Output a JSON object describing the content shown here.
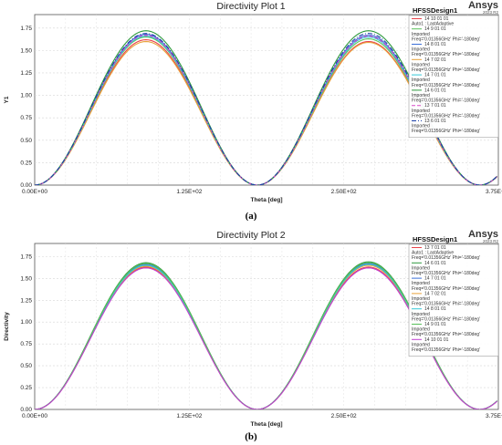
{
  "chart_data": [
    {
      "type": "line",
      "caption": "(a)",
      "title": "Directivity Plot 1",
      "brand": "Ansys",
      "brand_sub": "2023 R2",
      "design": "HFSSDesign1",
      "xlabel": "Theta [deg]",
      "ylabel": "Y1",
      "xlim": [
        0,
        375
      ],
      "ylim": [
        0,
        1.9
      ],
      "xticks": [
        "0.00E+00",
        "1.25E+02",
        "2.50E+02",
        "3.75E+02"
      ],
      "xtick_values": [
        0,
        125,
        250,
        375
      ],
      "yticks": [
        "0.00",
        "0.25",
        "0.50",
        "0.75",
        "1.00",
        "1.25",
        "1.50",
        "1.75"
      ],
      "ytick_values": [
        0,
        0.25,
        0.5,
        0.75,
        1.0,
        1.25,
        1.5,
        1.75
      ],
      "grid": true,
      "legend": "top-right",
      "shape": "sin_squared_period_180",
      "series": [
        {
          "name": "14 10 01 01",
          "sub": [
            "Auto1 : LastAdaptive"
          ],
          "color": "#e8434a",
          "dash": "",
          "peak1": 1.62,
          "peak2": 1.6
        },
        {
          "name": "14 9 01 01",
          "sub": [
            "Imported",
            "Freq='0.01356GHz' Phi='-180deg'"
          ],
          "color": "#58c05a",
          "dash": "",
          "peak1": 1.65,
          "peak2": 1.63
        },
        {
          "name": "14 8 01 01",
          "sub": [
            "Imported",
            "Freq='0.01356GHz' Phi='-180deg'"
          ],
          "color": "#3b6fd8",
          "dash": "",
          "peak1": 1.68,
          "peak2": 1.67
        },
        {
          "name": "14 7 02 01",
          "sub": [
            "Imported",
            "Freq='0.01356GHz' Phi='-180deg'"
          ],
          "color": "#e8a23a",
          "dash": "",
          "peak1": 1.6,
          "peak2": 1.59
        },
        {
          "name": "14 7 01 01",
          "sub": [
            "Imported",
            "Freq='0.01356GHz' Phi='-180deg'"
          ],
          "color": "#33c8d8",
          "dash": "",
          "peak1": 1.66,
          "peak2": 1.65
        },
        {
          "name": "14 6 01 01",
          "sub": [
            "Imported",
            "Freq='0.01356GHz' Phi='-180deg'"
          ],
          "color": "#2e9a3e",
          "dash": "",
          "peak1": 1.72,
          "peak2": 1.72
        },
        {
          "name": "13 7 01 01",
          "sub": [
            "Imported",
            "Freq='0.01356GHz' Phi='-180deg'"
          ],
          "color": "#d848c8",
          "dash": "4,2",
          "peak1": 1.67,
          "peak2": 1.66
        },
        {
          "name": "13 6 01 01",
          "sub": [
            "Imported",
            "Freq='0.01356GHz' Phi='-180deg'"
          ],
          "color": "#1a3fa8",
          "dash": "5,2,1,2",
          "peak1": 1.69,
          "peak2": 1.69
        }
      ]
    },
    {
      "type": "line",
      "caption": "(b)",
      "title": "Directivity Plot 2",
      "brand": "Ansys",
      "brand_sub": "2023 R2",
      "design": "HFSSDesign1",
      "xlabel": "Theta [deg]",
      "ylabel": "Directivity",
      "xlim": [
        0,
        375
      ],
      "ylim": [
        0,
        1.9
      ],
      "xticks": [
        "0.00E+00",
        "1.25E+02",
        "2.50E+02",
        "3.75E+02"
      ],
      "xtick_values": [
        0,
        125,
        250,
        375
      ],
      "yticks": [
        "0.00",
        "0.25",
        "0.50",
        "0.75",
        "1.00",
        "1.25",
        "1.50",
        "1.75"
      ],
      "ytick_values": [
        0,
        0.25,
        0.5,
        0.75,
        1.0,
        1.25,
        1.5,
        1.75
      ],
      "grid": true,
      "legend": "top-right",
      "shape": "sin_squared_period_180",
      "series": [
        {
          "name": "13 7 01 01",
          "sub": [
            "Auto1 : LastAdaptive",
            "Freq='0.01356GHz' Phi='-180deg'"
          ],
          "color": "#e8434a",
          "dash": "",
          "peak1": 1.63,
          "peak2": 1.63
        },
        {
          "name": "14 6 01 01",
          "sub": [
            "Imported",
            "Freq='0.01356GHz' Phi='-180deg'"
          ],
          "color": "#2e9a3e",
          "dash": "",
          "peak1": 1.68,
          "peak2": 1.69
        },
        {
          "name": "14 7 01 01",
          "sub": [
            "Imported",
            "Freq='0.01356GHz' Phi='-180deg'"
          ],
          "color": "#3b6fd8",
          "dash": "",
          "peak1": 1.66,
          "peak2": 1.67
        },
        {
          "name": "14 7 02 01",
          "sub": [
            "Imported",
            "Freq='0.01356GHz' Phi='-180deg'"
          ],
          "color": "#e8a23a",
          "dash": "",
          "peak1": 1.64,
          "peak2": 1.65
        },
        {
          "name": "14 8 01 01",
          "sub": [
            "Imported",
            "Freq='0.01356GHz' Phi='-180deg'"
          ],
          "color": "#33c8d8",
          "dash": "",
          "peak1": 1.65,
          "peak2": 1.66
        },
        {
          "name": "14 9 01 01",
          "sub": [
            "Imported",
            "Freq='0.01356GHz' Phi='-180deg'"
          ],
          "color": "#58c05a",
          "dash": "",
          "peak1": 1.67,
          "peak2": 1.68
        },
        {
          "name": "14 10 01 01",
          "sub": [
            "Imported",
            "Freq='0.01356GHz' Phi='-180deg'"
          ],
          "color": "#c040d0",
          "dash": "",
          "peak1": 1.62,
          "peak2": 1.62
        }
      ]
    }
  ]
}
